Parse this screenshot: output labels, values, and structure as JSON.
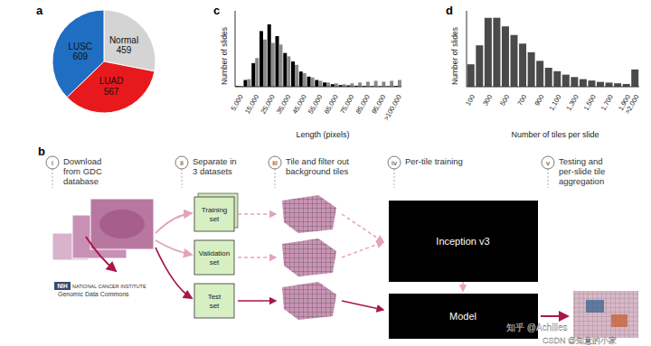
{
  "chart_data": [
    {
      "type": "pie",
      "panel": "a",
      "categories": [
        "Normal",
        "LUAD",
        "LUSC"
      ],
      "values": [
        459,
        567,
        609
      ],
      "colors": [
        "#d4d4d4",
        "#e8191c",
        "#1f6ec2"
      ],
      "data_labels": true
    },
    {
      "type": "bar",
      "panel": "c",
      "x_label": "Length (pixels)",
      "y_label": "Number of slides",
      "categories": [
        "5,000",
        null,
        "15,000",
        null,
        "25,000",
        null,
        "35,000",
        null,
        "45,000",
        null,
        "55,000",
        null,
        "65,000",
        null,
        "75,000",
        null,
        "85,000",
        null,
        "95,000",
        null,
        ">100,000"
      ],
      "series": [
        {
          "color": "#000000",
          "values": [
            5,
            40,
            140,
            330,
            370,
            300,
            200,
            150,
            90,
            60,
            40,
            25,
            15,
            10,
            8,
            6,
            5,
            4,
            3,
            3,
            5
          ]
        },
        {
          "color": "#8a8a8a",
          "values": [
            5,
            45,
            170,
            280,
            260,
            250,
            180,
            130,
            80,
            55,
            35,
            25,
            20,
            15,
            20,
            25,
            30,
            35,
            30,
            35,
            40
          ]
        }
      ],
      "ylim": [
        0,
        450
      ],
      "tick_labels": "x"
    },
    {
      "type": "bar",
      "panel": "d",
      "x_label": "Number of tiles per slide",
      "y_label": "Number of slides",
      "categories": [
        "100",
        null,
        "300",
        null,
        "500",
        null,
        "700",
        null,
        "900",
        null,
        "1,100",
        null,
        "1,300",
        null,
        "1,500",
        null,
        "1,700",
        null,
        "1,900",
        ">2,000"
      ],
      "values": [
        65,
        120,
        200,
        200,
        175,
        150,
        125,
        100,
        75,
        55,
        45,
        35,
        28,
        22,
        18,
        14,
        12,
        10,
        8,
        50
      ],
      "color": "#4a4a4a",
      "ylim": [
        0,
        220
      ],
      "tick_labels": "x"
    }
  ],
  "diagram": {
    "panel": "b",
    "steps": [
      {
        "num": "i",
        "lines": [
          "Download",
          "from GDC",
          "database"
        ]
      },
      {
        "num": "ii",
        "lines": [
          "Separate in",
          "3 datasets"
        ]
      },
      {
        "num": "iii",
        "lines": [
          "Tile and filter out",
          "background tiles"
        ]
      },
      {
        "num": "iv",
        "lines": [
          "Per-tile training"
        ]
      },
      {
        "num": "v",
        "lines": [
          "Testing and",
          "per-slide tile",
          "aggregation"
        ]
      }
    ],
    "datasets": [
      [
        "Training",
        "set"
      ],
      [
        "Validation",
        "set"
      ],
      [
        "Test",
        "set"
      ]
    ],
    "network": "Inception v3",
    "model": "Model",
    "logo": [
      "NIH",
      "NATIONAL CANCER INSTITUTE",
      "Genomic Data Commons"
    ]
  },
  "watermark": [
    "知乎 @Achilles",
    "CSDN @知意的小家"
  ]
}
